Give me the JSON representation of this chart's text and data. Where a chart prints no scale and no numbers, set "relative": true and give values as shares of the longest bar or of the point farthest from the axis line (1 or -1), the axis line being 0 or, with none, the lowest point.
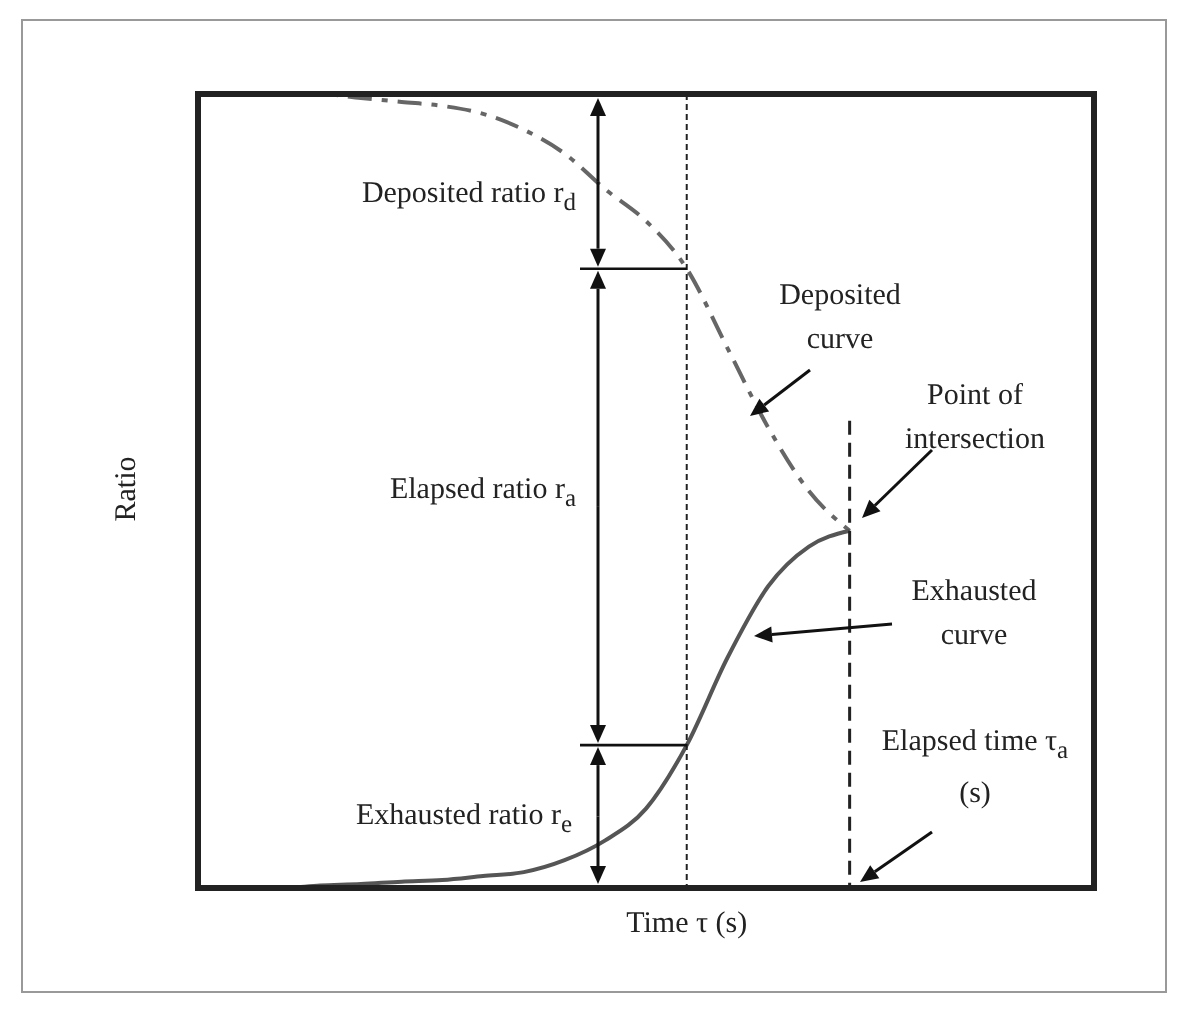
{
  "chart_data": {
    "type": "line",
    "relative": true,
    "xlabel": "Time τ (s)",
    "ylabel": "Ratio",
    "grid": false,
    "legend": false,
    "marker": "none",
    "categories": [
      null,
      null,
      null,
      null,
      null,
      null,
      null,
      null,
      null,
      null,
      null,
      null,
      null,
      null,
      null,
      null,
      null,
      null,
      null,
      null,
      null,
      null,
      null
    ],
    "series": [
      {
        "color": "#666666",
        "line_style": "dashed",
        "values": [
          1.0,
          1.0,
          1.0,
          1.0,
          0.995,
          0.99,
          0.985,
          0.975,
          0.955,
          0.925,
          0.88,
          0.84,
          0.78,
          0.68,
          0.58,
          0.5,
          0.45,
          null,
          null,
          null,
          null,
          null,
          null
        ]
      },
      {
        "color": "#555555",
        "line_style": "solid",
        "values": [
          0,
          0,
          0,
          0.003,
          0.005,
          0.008,
          0.01,
          0.015,
          0.02,
          0.035,
          0.06,
          0.1,
          0.18,
          0.29,
          0.38,
          0.43,
          0.45,
          null,
          null,
          null,
          null,
          null,
          null
        ]
      }
    ],
    "annotations": [
      "Deposited ratio r$_{d}$",
      "Elapsed ratio r$_{a}$",
      "Exhausted ratio r$_{e}$",
      "Deposited curve",
      "Point of intersection",
      "Exhausted curve",
      "Elapsed time τ$_{a}$ (s)"
    ]
  }
}
